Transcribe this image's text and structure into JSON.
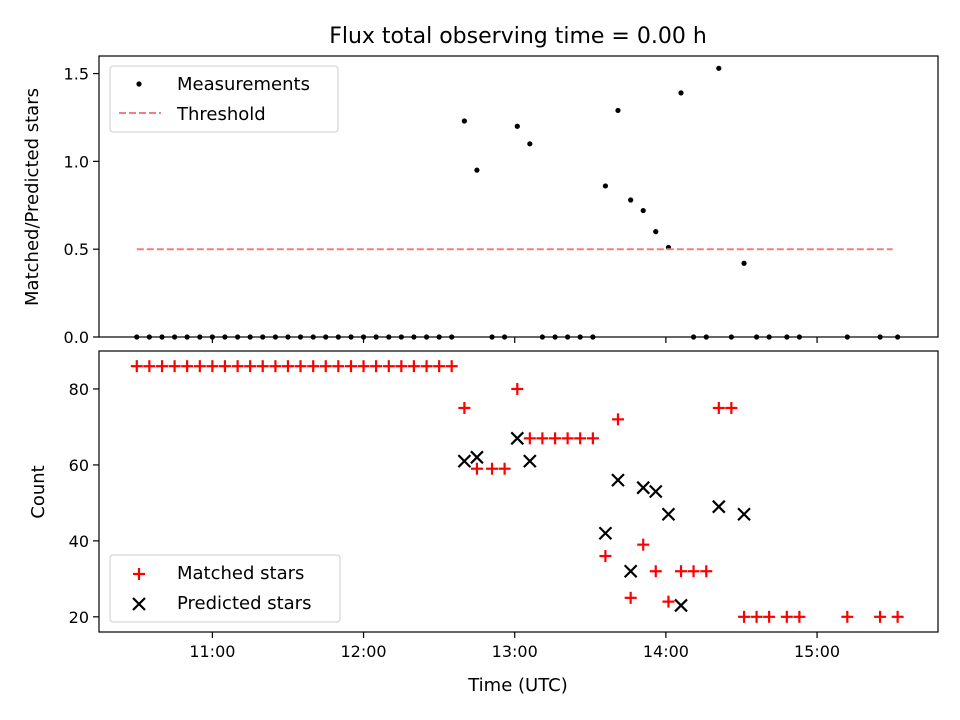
{
  "chart_data": [
    {
      "type": "scatter",
      "title": "Flux total observing time = 0.00 h",
      "xlabel": "",
      "ylabel": "Matched/Predicted stars",
      "xlim": [
        10.25,
        15.8
      ],
      "ylim": [
        0,
        1.6
      ],
      "xticks": [
        "11:00",
        "12:00",
        "13:00",
        "14:00",
        "15:00"
      ],
      "yticks": [
        0.0,
        0.5,
        1.0,
        1.5
      ],
      "legend": "upper-left",
      "series": [
        {
          "name": "Measurements",
          "kind": "points",
          "color": "#000000",
          "x": [
            10.5,
            10.583,
            10.667,
            10.75,
            10.833,
            10.917,
            11.0,
            11.083,
            11.167,
            11.25,
            11.333,
            11.417,
            11.5,
            11.583,
            11.667,
            11.75,
            11.833,
            11.917,
            12.0,
            12.083,
            12.167,
            12.25,
            12.333,
            12.417,
            12.5,
            12.583,
            12.667,
            12.75,
            12.85,
            12.933,
            13.017,
            13.1,
            13.183,
            13.267,
            13.35,
            13.433,
            13.517,
            13.6,
            13.683,
            13.767,
            13.85,
            13.933,
            14.017,
            14.1,
            14.183,
            14.267,
            14.35,
            14.433,
            14.517,
            14.6,
            14.683,
            14.8,
            14.883,
            15.2,
            15.417,
            15.533
          ],
          "y": [
            0,
            0,
            0,
            0,
            0,
            0,
            0,
            0,
            0,
            0,
            0,
            0,
            0,
            0,
            0,
            0,
            0,
            0,
            0,
            0,
            0,
            0,
            0,
            0,
            0,
            0,
            1.23,
            0.95,
            0,
            0,
            1.2,
            1.1,
            0,
            0,
            0,
            0,
            0,
            0.86,
            1.29,
            0.78,
            0.72,
            0.6,
            0.51,
            1.39,
            0,
            0,
            1.53,
            0,
            0.42,
            0,
            0,
            0,
            0,
            0,
            0,
            0
          ]
        },
        {
          "name": "Threshold",
          "kind": "dashed-line",
          "color": "#f08080",
          "x": [
            10.5,
            15.5
          ],
          "y": [
            0.5,
            0.5
          ]
        }
      ]
    },
    {
      "type": "scatter",
      "title": "",
      "xlabel": "Time (UTC)",
      "ylabel": "Count",
      "xlim": [
        10.25,
        15.8
      ],
      "ylim": [
        16,
        90
      ],
      "xticks": [
        "11:00",
        "12:00",
        "13:00",
        "14:00",
        "15:00"
      ],
      "yticks": [
        20,
        40,
        60,
        80
      ],
      "legend": "lower-left",
      "series": [
        {
          "name": "Matched stars",
          "kind": "plus",
          "color": "#ff0000",
          "x": [
            10.5,
            10.583,
            10.667,
            10.75,
            10.833,
            10.917,
            11.0,
            11.083,
            11.167,
            11.25,
            11.333,
            11.417,
            11.5,
            11.583,
            11.667,
            11.75,
            11.833,
            11.917,
            12.0,
            12.083,
            12.167,
            12.25,
            12.333,
            12.417,
            12.5,
            12.583,
            12.667,
            12.75,
            12.85,
            12.933,
            13.017,
            13.1,
            13.183,
            13.267,
            13.35,
            13.433,
            13.517,
            13.6,
            13.683,
            13.767,
            13.85,
            13.933,
            14.017,
            14.1,
            14.183,
            14.267,
            14.35,
            14.433,
            14.517,
            14.6,
            14.683,
            14.8,
            14.883,
            15.2,
            15.417,
            15.533
          ],
          "y": [
            86,
            86,
            86,
            86,
            86,
            86,
            86,
            86,
            86,
            86,
            86,
            86,
            86,
            86,
            86,
            86,
            86,
            86,
            86,
            86,
            86,
            86,
            86,
            86,
            86,
            86,
            75,
            59,
            59,
            59,
            80,
            67,
            67,
            67,
            67,
            67,
            67,
            36,
            72,
            25,
            39,
            32,
            24,
            32,
            32,
            32,
            75,
            75,
            20,
            20,
            20,
            20,
            20,
            20,
            20,
            20
          ]
        },
        {
          "name": "Predicted stars",
          "kind": "x",
          "color": "#000000",
          "x": [
            12.667,
            12.75,
            13.017,
            13.1,
            13.6,
            13.683,
            13.767,
            13.85,
            13.933,
            14.017,
            14.1,
            14.35,
            14.517
          ],
          "y": [
            61,
            62,
            67,
            61,
            42,
            56,
            32,
            54,
            53,
            47,
            23,
            49,
            47
          ]
        }
      ]
    }
  ]
}
